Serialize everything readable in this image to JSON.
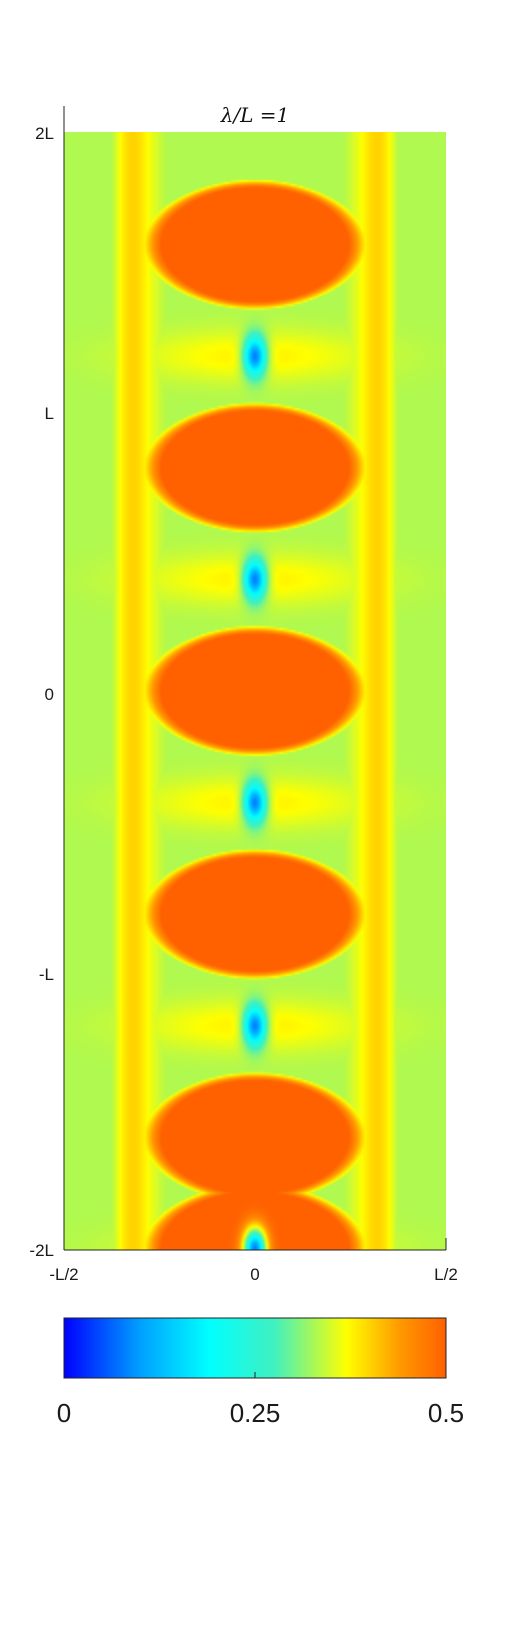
{
  "chart_data": {
    "type": "heatmap",
    "title": "λ/L =1",
    "xlabel": "",
    "ylabel": "",
    "x_tick_labels": [
      "-L/2",
      "0",
      "L/2"
    ],
    "y_tick_labels": [
      "2L",
      "L",
      "0",
      "-L",
      "-2L"
    ],
    "x_range": [
      -0.5,
      0.5
    ],
    "y_range": [
      -2,
      2
    ],
    "period_y": 0.8,
    "high_value_blob_centers_y": [
      1.6,
      0.8,
      0.0,
      -0.8,
      -1.6,
      -2.0
    ],
    "low_value_spot_centers": [
      [
        0,
        1.2
      ],
      [
        0,
        0.4
      ],
      [
        0,
        -0.4
      ],
      [
        0,
        -1.2
      ],
      [
        0,
        -2.0
      ]
    ],
    "colorbar": {
      "range": [
        0,
        0.5
      ],
      "tick_labels": [
        "0",
        "0.25",
        "0.5"
      ],
      "colormap": "jet-like (blue → cyan → yellow → orange)",
      "stops": [
        "#0000ff",
        "#00a0ff",
        "#00ffff",
        "#40f0c0",
        "#ffff00",
        "#ff9900",
        "#ff6000"
      ]
    }
  }
}
